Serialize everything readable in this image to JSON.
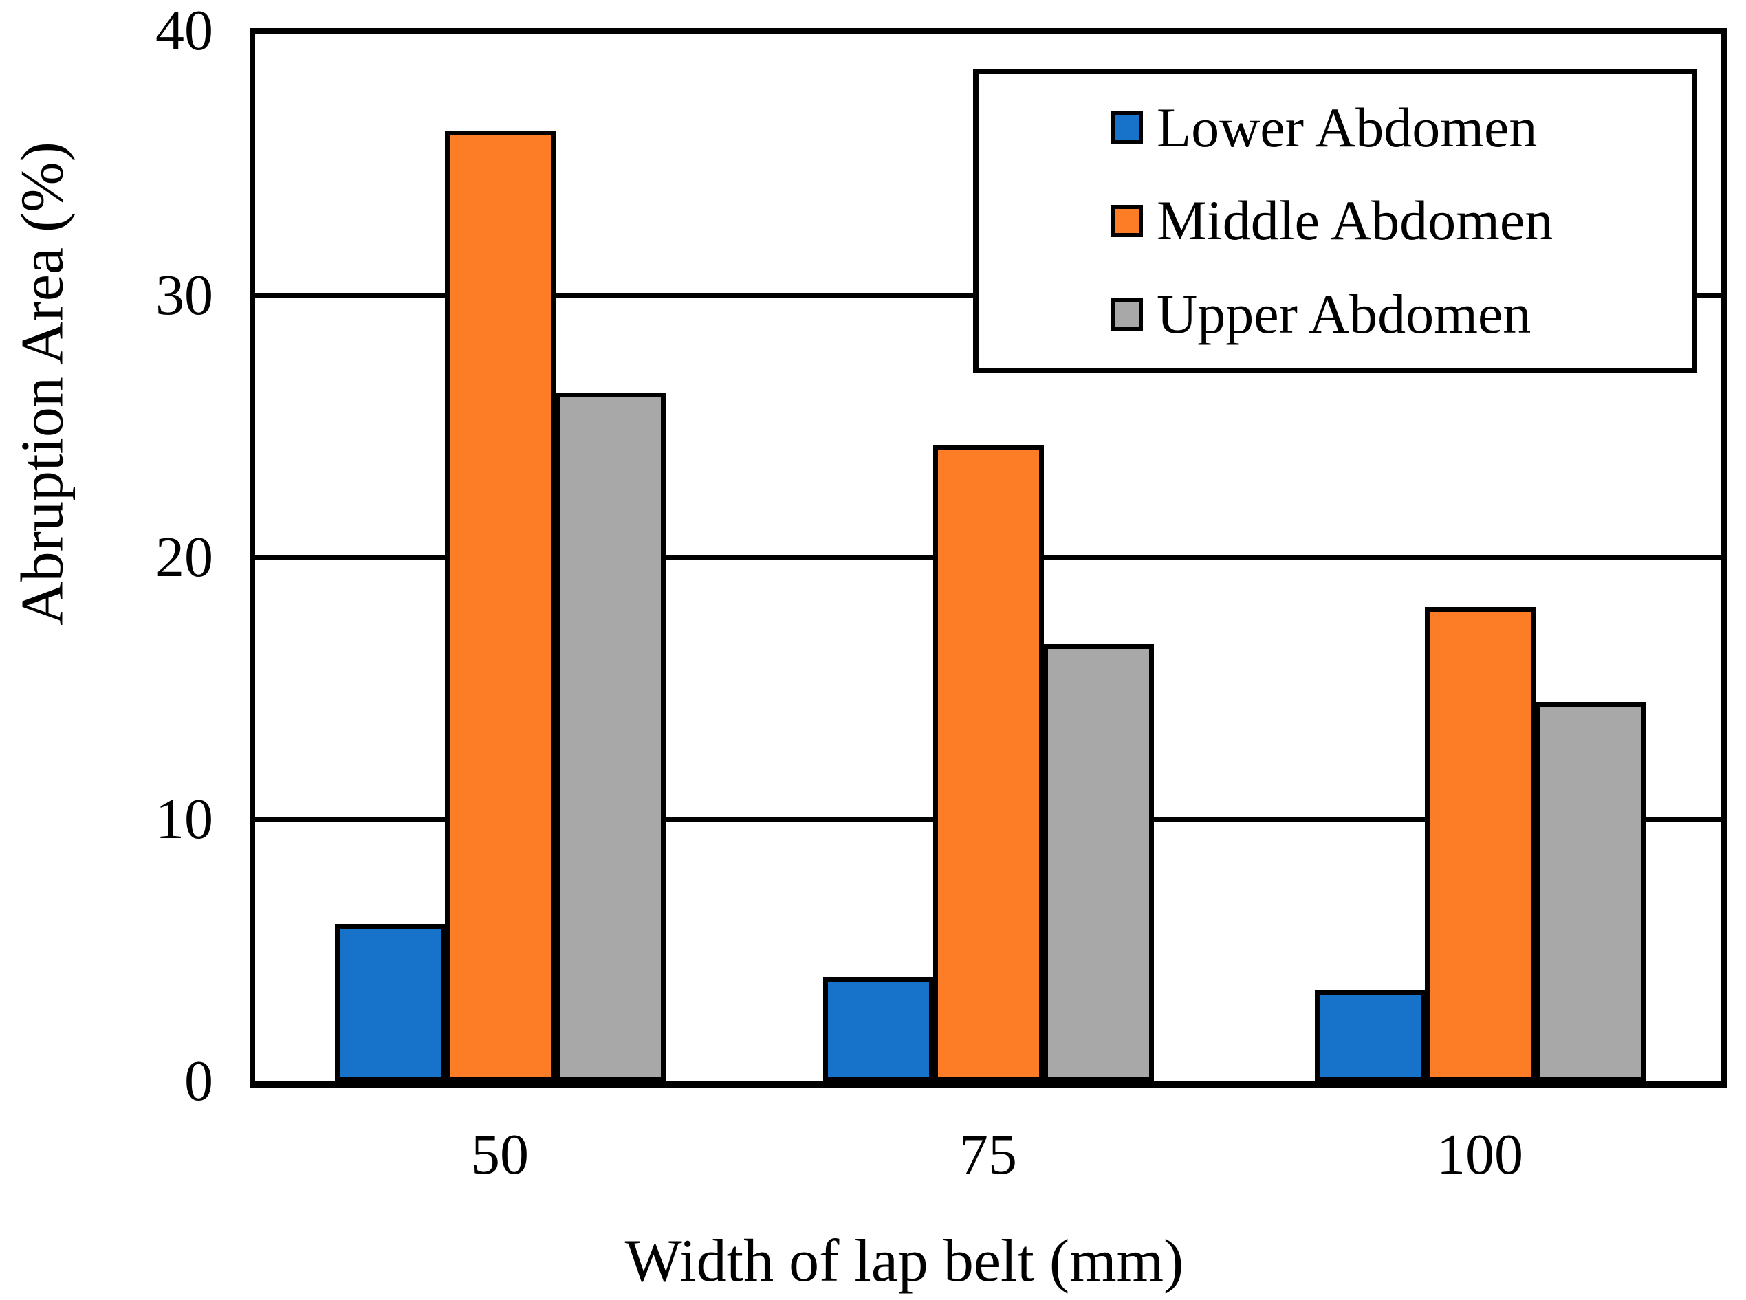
{
  "y_axis": {
    "label": "Abruption Area (%)",
    "ticks": [
      "40",
      "30",
      "20",
      "10",
      "0"
    ],
    "tick_values": [
      40,
      30,
      20,
      10,
      0
    ],
    "max": 40,
    "min": 0
  },
  "x_axis": {
    "label": "Width of lap belt (mm)",
    "categories": [
      "50",
      "75",
      "100"
    ]
  },
  "legend": {
    "entries": [
      {
        "label": "Lower Abdomen",
        "color": "#1773C9"
      },
      {
        "label": "Middle Abdomen",
        "color": "#FC7D26"
      },
      {
        "label": "Upper Abdomen",
        "color": "#A8A8A8"
      }
    ]
  },
  "colors": {
    "axis": "#000000",
    "background": "#FFFFFF",
    "lower_abdomen_blue": "#1773C9",
    "middle_abdomen_orange": "#FC7D26",
    "upper_abdomen_gray": "#A8A8A8"
  },
  "chart_data": {
    "type": "bar",
    "categories": [
      "50",
      "75",
      "100"
    ],
    "series": [
      {
        "name": "Lower Abdomen",
        "color": "#1773C9",
        "values": [
          6.0,
          4.0,
          3.5
        ]
      },
      {
        "name": "Middle Abdomen",
        "color": "#FC7D26",
        "values": [
          36.3,
          24.3,
          18.1
        ]
      },
      {
        "name": "Upper Abdomen",
        "color": "#A8A8A8",
        "values": [
          26.3,
          16.7,
          14.5
        ]
      }
    ],
    "title": "",
    "xlabel": "Width of lap belt (mm)",
    "ylabel": "Abruption Area (%)",
    "ylim": [
      0,
      40
    ],
    "ytick_step": 10,
    "grid": true,
    "legend_position": "top-right"
  }
}
